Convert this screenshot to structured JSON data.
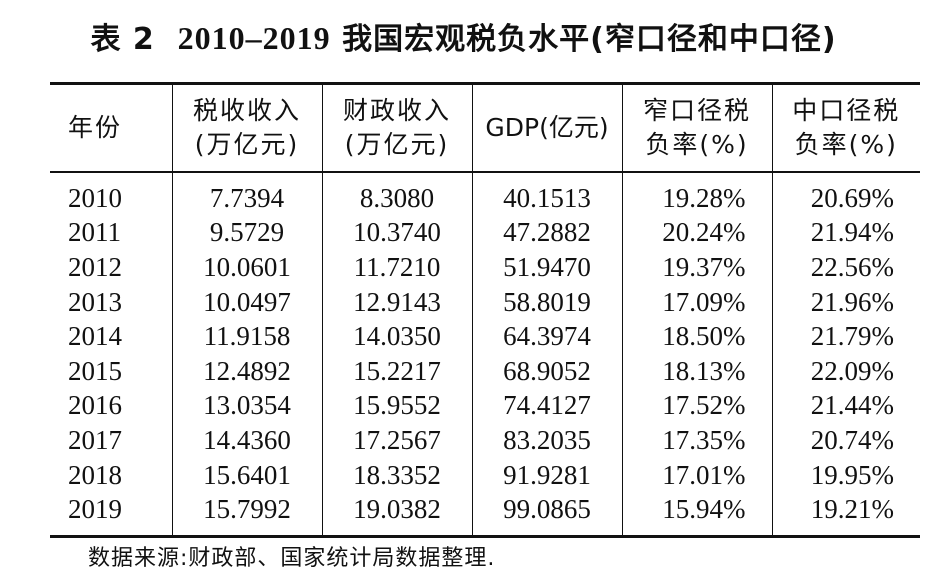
{
  "caption": {
    "label": "表 2",
    "years": "2010–2019",
    "text": "我国宏观税负水平(窄口径和中口径)"
  },
  "table": {
    "headers": {
      "year": "年份",
      "tax_revenue_l1": "税收收入",
      "tax_revenue_l2": "(万亿元)",
      "fiscal_revenue_l1": "财政收入",
      "fiscal_revenue_l2": "(万亿元)",
      "gdp": "GDP(亿元)",
      "narrow_rate_l1": "窄口径税",
      "narrow_rate_l2": "负率(%)",
      "mid_rate_l1": "中口径税",
      "mid_rate_l2": "负率(%)"
    },
    "rows": [
      {
        "year": "2010",
        "tax": "7.7394",
        "fiscal": "8.3080",
        "gdp": "40.1513",
        "narrow": "19.28%",
        "mid": "20.69%"
      },
      {
        "year": "2011",
        "tax": "9.5729",
        "fiscal": "10.3740",
        "gdp": "47.2882",
        "narrow": "20.24%",
        "mid": "21.94%"
      },
      {
        "year": "2012",
        "tax": "10.0601",
        "fiscal": "11.7210",
        "gdp": "51.9470",
        "narrow": "19.37%",
        "mid": "22.56%"
      },
      {
        "year": "2013",
        "tax": "10.0497",
        "fiscal": "12.9143",
        "gdp": "58.8019",
        "narrow": "17.09%",
        "mid": "21.96%"
      },
      {
        "year": "2014",
        "tax": "11.9158",
        "fiscal": "14.0350",
        "gdp": "64.3974",
        "narrow": "18.50%",
        "mid": "21.79%"
      },
      {
        "year": "2015",
        "tax": "12.4892",
        "fiscal": "15.2217",
        "gdp": "68.9052",
        "narrow": "18.13%",
        "mid": "22.09%"
      },
      {
        "year": "2016",
        "tax": "13.0354",
        "fiscal": "15.9552",
        "gdp": "74.4127",
        "narrow": "17.52%",
        "mid": "21.44%"
      },
      {
        "year": "2017",
        "tax": "14.4360",
        "fiscal": "17.2567",
        "gdp": "83.2035",
        "narrow": "17.35%",
        "mid": "20.74%"
      },
      {
        "year": "2018",
        "tax": "15.6401",
        "fiscal": "18.3352",
        "gdp": "91.9281",
        "narrow": "17.01%",
        "mid": "19.95%"
      },
      {
        "year": "2019",
        "tax": "15.7992",
        "fiscal": "19.0382",
        "gdp": "99.0865",
        "narrow": "15.94%",
        "mid": "19.21%"
      }
    ]
  },
  "source_note": "数据来源:财政部、国家统计局数据整理."
}
